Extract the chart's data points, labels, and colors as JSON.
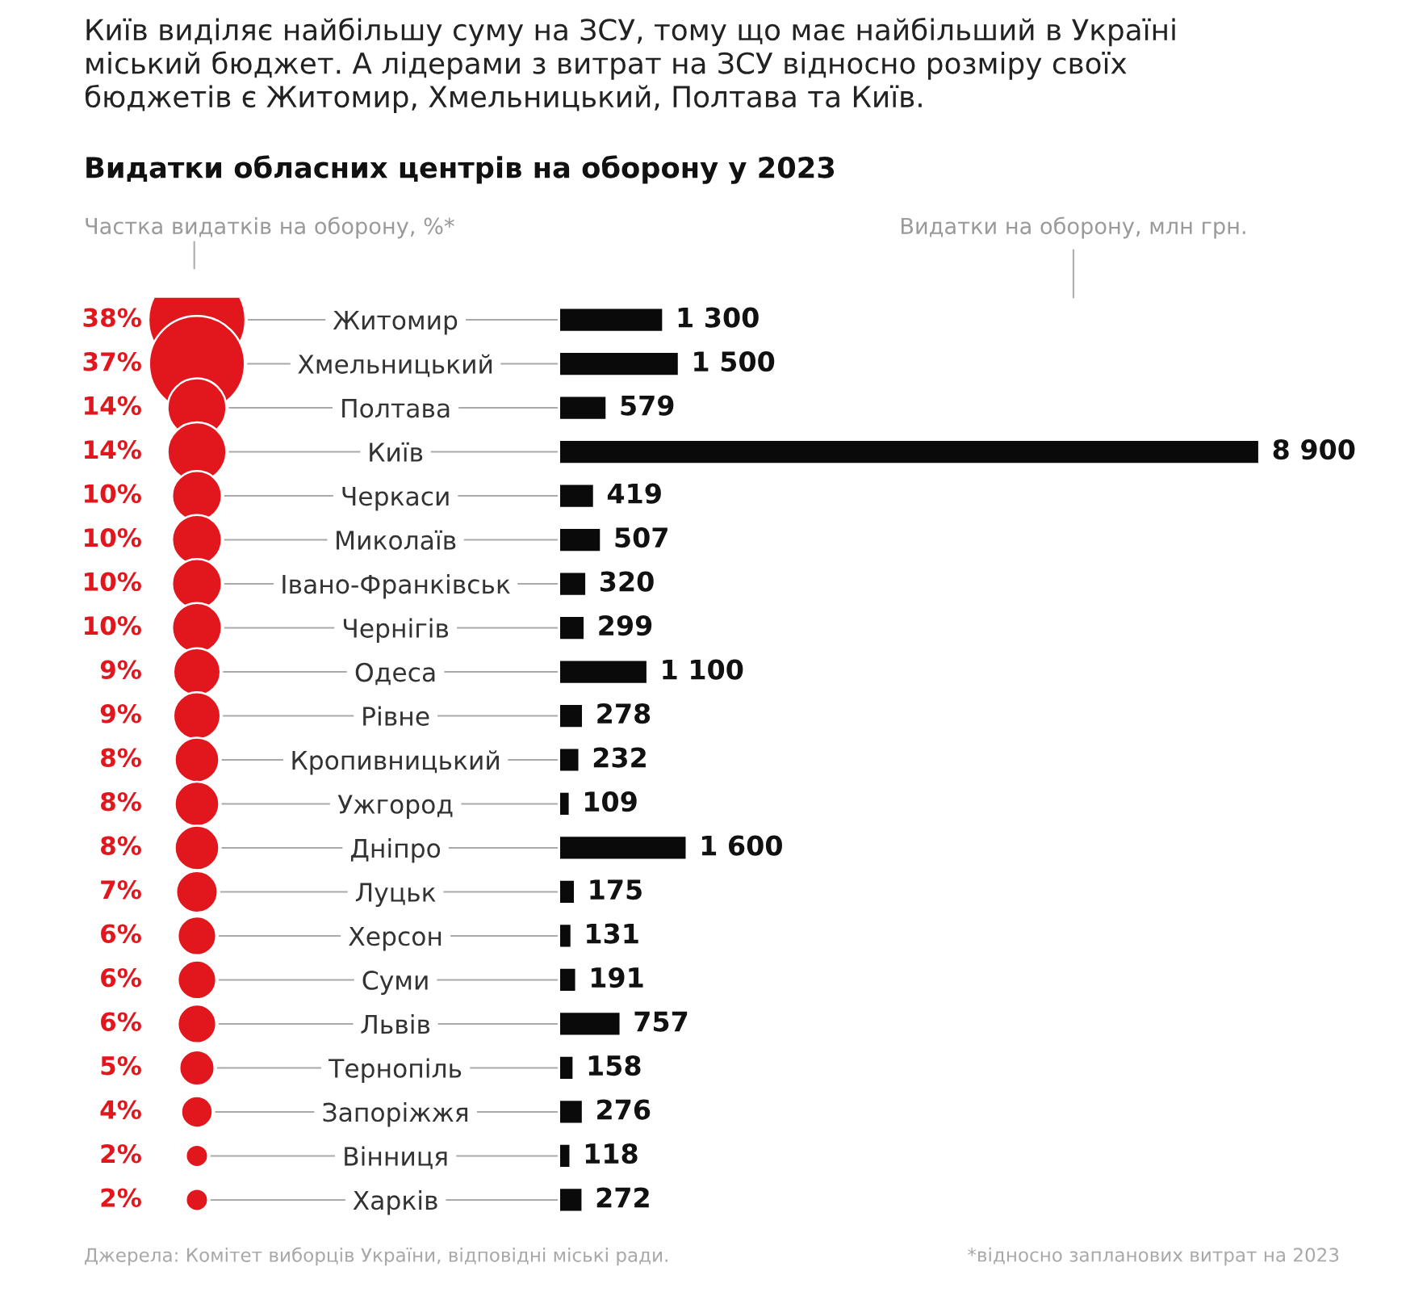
{
  "chart_data": [
    {
      "type": "other",
      "title": "Видатки обласних центрів на оборону у 2023",
      "subtitle": "Київ виділяє найбільшу суму на ЗСУ, тому що має найбільший в Україні\nміський бюджет. А лідерами з витрат на ЗСУ відносно розміру своїх\nбюджетів є Житомир, Хмельницький, Полтава та Київ.",
      "xlabel": "Частка видатків на оборону, %*",
      "values": [
        38,
        37,
        14,
        14,
        10,
        10,
        10,
        10,
        9,
        9,
        8,
        8,
        8,
        7,
        6,
        6,
        6,
        5,
        4,
        2,
        2
      ],
      "value_labels": [
        "38%",
        "37%",
        "14%",
        "14%",
        "10%",
        "10%",
        "10%",
        "10%",
        "9%",
        "9%",
        "8%",
        "8%",
        "8%",
        "7%",
        "6%",
        "6%",
        "6%",
        "5%",
        "4%",
        "2%",
        "2%"
      ],
      "color": "#e2161d",
      "annotations": [
        "Джерела: Комітет виборців України, відповідні міські ради."
      ]
    },
    {
      "type": "bar",
      "orientation": "horizontal",
      "xlabel": "Видатки на оборону, млн грн.",
      "categories": [
        "Житомир",
        "Хмельницький",
        "Полтава",
        "Київ",
        "Черкаси",
        "Миколаїв",
        "Івано-Франківськ",
        "Чернігів",
        "Одеса",
        "Рівне",
        "Кропивницький",
        "Ужгород",
        "Дніпро",
        "Луцьк",
        "Херсон",
        "Суми",
        "Львів",
        "Тернопіль",
        "Запоріжжя",
        "Вінниця",
        "Харків"
      ],
      "values": [
        1300,
        1500,
        579,
        8900,
        419,
        507,
        320,
        299,
        1100,
        278,
        232,
        109,
        1600,
        175,
        131,
        191,
        757,
        158,
        276,
        118,
        272
      ],
      "value_labels": [
        "1 300",
        "1 500",
        "579",
        "8 900",
        "419",
        "507",
        "320",
        "299",
        "1 100",
        "278",
        "232",
        "109",
        "1 600",
        "175",
        "131",
        "191",
        "757",
        "158",
        "276",
        "118",
        "272"
      ],
      "color": "#0a0a0a",
      "tick_labels": "y",
      "annotations": [
        "*відносно запланових витрат на 2023"
      ]
    }
  ]
}
